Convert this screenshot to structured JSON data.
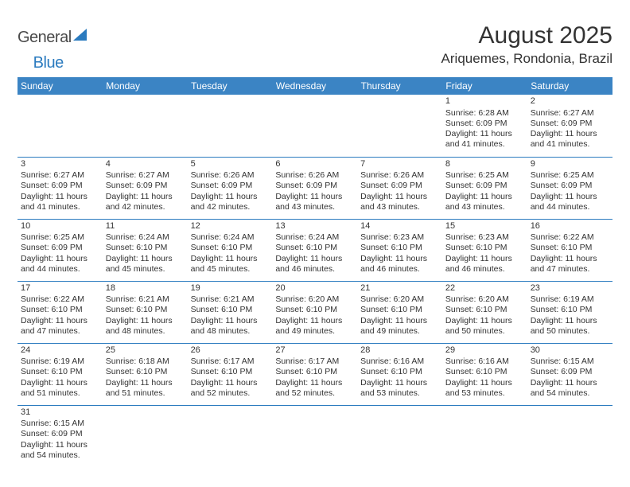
{
  "brand": {
    "part1": "General",
    "part2": "Blue"
  },
  "title": "August 2025",
  "location": "Ariquemes, Rondonia, Brazil",
  "colors": {
    "header_bg": "#3b84c4",
    "header_fg": "#ffffff",
    "rule": "#2b7bbf",
    "text": "#333333",
    "brand_gray": "#4a4a4a",
    "brand_blue": "#2b7bbf"
  },
  "weekdays": [
    "Sunday",
    "Monday",
    "Tuesday",
    "Wednesday",
    "Thursday",
    "Friday",
    "Saturday"
  ],
  "weeks": [
    [
      null,
      null,
      null,
      null,
      null,
      {
        "n": "1",
        "sr": "Sunrise: 6:28 AM",
        "ss": "Sunset: 6:09 PM",
        "dl": "Daylight: 11 hours and 41 minutes."
      },
      {
        "n": "2",
        "sr": "Sunrise: 6:27 AM",
        "ss": "Sunset: 6:09 PM",
        "dl": "Daylight: 11 hours and 41 minutes."
      }
    ],
    [
      {
        "n": "3",
        "sr": "Sunrise: 6:27 AM",
        "ss": "Sunset: 6:09 PM",
        "dl": "Daylight: 11 hours and 41 minutes."
      },
      {
        "n": "4",
        "sr": "Sunrise: 6:27 AM",
        "ss": "Sunset: 6:09 PM",
        "dl": "Daylight: 11 hours and 42 minutes."
      },
      {
        "n": "5",
        "sr": "Sunrise: 6:26 AM",
        "ss": "Sunset: 6:09 PM",
        "dl": "Daylight: 11 hours and 42 minutes."
      },
      {
        "n": "6",
        "sr": "Sunrise: 6:26 AM",
        "ss": "Sunset: 6:09 PM",
        "dl": "Daylight: 11 hours and 43 minutes."
      },
      {
        "n": "7",
        "sr": "Sunrise: 6:26 AM",
        "ss": "Sunset: 6:09 PM",
        "dl": "Daylight: 11 hours and 43 minutes."
      },
      {
        "n": "8",
        "sr": "Sunrise: 6:25 AM",
        "ss": "Sunset: 6:09 PM",
        "dl": "Daylight: 11 hours and 43 minutes."
      },
      {
        "n": "9",
        "sr": "Sunrise: 6:25 AM",
        "ss": "Sunset: 6:09 PM",
        "dl": "Daylight: 11 hours and 44 minutes."
      }
    ],
    [
      {
        "n": "10",
        "sr": "Sunrise: 6:25 AM",
        "ss": "Sunset: 6:09 PM",
        "dl": "Daylight: 11 hours and 44 minutes."
      },
      {
        "n": "11",
        "sr": "Sunrise: 6:24 AM",
        "ss": "Sunset: 6:10 PM",
        "dl": "Daylight: 11 hours and 45 minutes."
      },
      {
        "n": "12",
        "sr": "Sunrise: 6:24 AM",
        "ss": "Sunset: 6:10 PM",
        "dl": "Daylight: 11 hours and 45 minutes."
      },
      {
        "n": "13",
        "sr": "Sunrise: 6:24 AM",
        "ss": "Sunset: 6:10 PM",
        "dl": "Daylight: 11 hours and 46 minutes."
      },
      {
        "n": "14",
        "sr": "Sunrise: 6:23 AM",
        "ss": "Sunset: 6:10 PM",
        "dl": "Daylight: 11 hours and 46 minutes."
      },
      {
        "n": "15",
        "sr": "Sunrise: 6:23 AM",
        "ss": "Sunset: 6:10 PM",
        "dl": "Daylight: 11 hours and 46 minutes."
      },
      {
        "n": "16",
        "sr": "Sunrise: 6:22 AM",
        "ss": "Sunset: 6:10 PM",
        "dl": "Daylight: 11 hours and 47 minutes."
      }
    ],
    [
      {
        "n": "17",
        "sr": "Sunrise: 6:22 AM",
        "ss": "Sunset: 6:10 PM",
        "dl": "Daylight: 11 hours and 47 minutes."
      },
      {
        "n": "18",
        "sr": "Sunrise: 6:21 AM",
        "ss": "Sunset: 6:10 PM",
        "dl": "Daylight: 11 hours and 48 minutes."
      },
      {
        "n": "19",
        "sr": "Sunrise: 6:21 AM",
        "ss": "Sunset: 6:10 PM",
        "dl": "Daylight: 11 hours and 48 minutes."
      },
      {
        "n": "20",
        "sr": "Sunrise: 6:20 AM",
        "ss": "Sunset: 6:10 PM",
        "dl": "Daylight: 11 hours and 49 minutes."
      },
      {
        "n": "21",
        "sr": "Sunrise: 6:20 AM",
        "ss": "Sunset: 6:10 PM",
        "dl": "Daylight: 11 hours and 49 minutes."
      },
      {
        "n": "22",
        "sr": "Sunrise: 6:20 AM",
        "ss": "Sunset: 6:10 PM",
        "dl": "Daylight: 11 hours and 50 minutes."
      },
      {
        "n": "23",
        "sr": "Sunrise: 6:19 AM",
        "ss": "Sunset: 6:10 PM",
        "dl": "Daylight: 11 hours and 50 minutes."
      }
    ],
    [
      {
        "n": "24",
        "sr": "Sunrise: 6:19 AM",
        "ss": "Sunset: 6:10 PM",
        "dl": "Daylight: 11 hours and 51 minutes."
      },
      {
        "n": "25",
        "sr": "Sunrise: 6:18 AM",
        "ss": "Sunset: 6:10 PM",
        "dl": "Daylight: 11 hours and 51 minutes."
      },
      {
        "n": "26",
        "sr": "Sunrise: 6:17 AM",
        "ss": "Sunset: 6:10 PM",
        "dl": "Daylight: 11 hours and 52 minutes."
      },
      {
        "n": "27",
        "sr": "Sunrise: 6:17 AM",
        "ss": "Sunset: 6:10 PM",
        "dl": "Daylight: 11 hours and 52 minutes."
      },
      {
        "n": "28",
        "sr": "Sunrise: 6:16 AM",
        "ss": "Sunset: 6:10 PM",
        "dl": "Daylight: 11 hours and 53 minutes."
      },
      {
        "n": "29",
        "sr": "Sunrise: 6:16 AM",
        "ss": "Sunset: 6:10 PM",
        "dl": "Daylight: 11 hours and 53 minutes."
      },
      {
        "n": "30",
        "sr": "Sunrise: 6:15 AM",
        "ss": "Sunset: 6:09 PM",
        "dl": "Daylight: 11 hours and 54 minutes."
      }
    ],
    [
      {
        "n": "31",
        "sr": "Sunrise: 6:15 AM",
        "ss": "Sunset: 6:09 PM",
        "dl": "Daylight: 11 hours and 54 minutes."
      },
      null,
      null,
      null,
      null,
      null,
      null
    ]
  ]
}
